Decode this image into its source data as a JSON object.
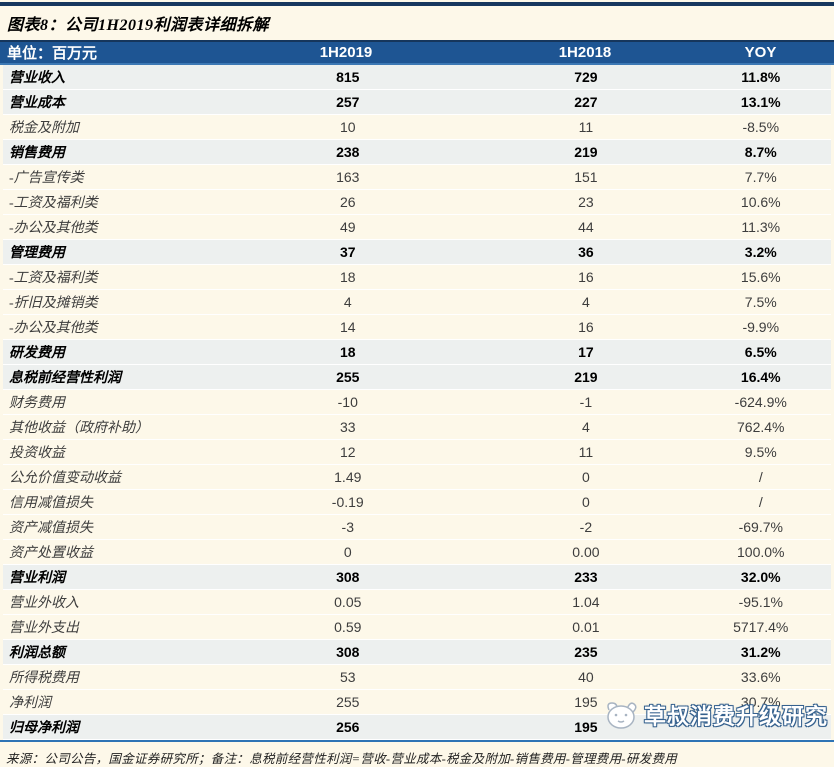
{
  "title": "图表8：公司1H2019利润表详细拆解",
  "table": {
    "unit_label": "单位：百万元",
    "columns": [
      "1H2019",
      "1H2018",
      "YOY"
    ],
    "rows": [
      {
        "label": "营业收入",
        "v2019": "815",
        "v2018": "729",
        "yoy": "11.8%",
        "bold": true
      },
      {
        "label": "营业成本",
        "v2019": "257",
        "v2018": "227",
        "yoy": "13.1%",
        "bold": true
      },
      {
        "label": "税金及附加",
        "v2019": "10",
        "v2018": "11",
        "yoy": "-8.5%",
        "bold": false
      },
      {
        "label": "销售费用",
        "v2019": "238",
        "v2018": "219",
        "yoy": "8.7%",
        "bold": true
      },
      {
        "label": "-广告宣传类",
        "v2019": "163",
        "v2018": "151",
        "yoy": "7.7%",
        "bold": false
      },
      {
        "label": "-工资及福利类",
        "v2019": "26",
        "v2018": "23",
        "yoy": "10.6%",
        "bold": false
      },
      {
        "label": "-办公及其他类",
        "v2019": "49",
        "v2018": "44",
        "yoy": "11.3%",
        "bold": false
      },
      {
        "label": "管理费用",
        "v2019": "37",
        "v2018": "36",
        "yoy": "3.2%",
        "bold": true
      },
      {
        "label": "-工资及福利类",
        "v2019": "18",
        "v2018": "16",
        "yoy": "15.6%",
        "bold": false
      },
      {
        "label": "-折旧及摊销类",
        "v2019": "4",
        "v2018": "4",
        "yoy": "7.5%",
        "bold": false
      },
      {
        "label": "-办公及其他类",
        "v2019": "14",
        "v2018": "16",
        "yoy": "-9.9%",
        "bold": false
      },
      {
        "label": "研发费用",
        "v2019": "18",
        "v2018": "17",
        "yoy": "6.5%",
        "bold": true
      },
      {
        "label": "息税前经营性利润",
        "v2019": "255",
        "v2018": "219",
        "yoy": "16.4%",
        "bold": true
      },
      {
        "label": "财务费用",
        "v2019": "-10",
        "v2018": "-1",
        "yoy": "-624.9%",
        "bold": false
      },
      {
        "label": "其他收益（政府补助）",
        "v2019": "33",
        "v2018": "4",
        "yoy": "762.4%",
        "bold": false
      },
      {
        "label": "投资收益",
        "v2019": "12",
        "v2018": "11",
        "yoy": "9.5%",
        "bold": false
      },
      {
        "label": "公允价值变动收益",
        "v2019": "1.49",
        "v2018": "0",
        "yoy": "/",
        "bold": false
      },
      {
        "label": "信用减值损失",
        "v2019": "-0.19",
        "v2018": "0",
        "yoy": "/",
        "bold": false
      },
      {
        "label": "资产减值损失",
        "v2019": "-3",
        "v2018": "-2",
        "yoy": "-69.7%",
        "bold": false
      },
      {
        "label": "资产处置收益",
        "v2019": "0",
        "v2018": "0.00",
        "yoy": "100.0%",
        "bold": false
      },
      {
        "label": "营业利润",
        "v2019": "308",
        "v2018": "233",
        "yoy": "32.0%",
        "bold": true
      },
      {
        "label": "营业外收入",
        "v2019": "0.05",
        "v2018": "1.04",
        "yoy": "-95.1%",
        "bold": false
      },
      {
        "label": "营业外支出",
        "v2019": "0.59",
        "v2018": "0.01",
        "yoy": "5717.4%",
        "bold": false
      },
      {
        "label": "利润总额",
        "v2019": "308",
        "v2018": "235",
        "yoy": "31.2%",
        "bold": true
      },
      {
        "label": "所得税费用",
        "v2019": "53",
        "v2018": "40",
        "yoy": "33.6%",
        "bold": false
      },
      {
        "label": "净利润",
        "v2019": "255",
        "v2018": "195",
        "yoy": "30.7%",
        "bold": false
      },
      {
        "label": "归母净利润",
        "v2019": "256",
        "v2018": "195",
        "yoy": "",
        "bold": true
      }
    ]
  },
  "footer": "来源：公司公告，国金证券研究所；备注：息税前经营性利润=营收-营业成本-税金及附加-销售费用-管理费用-研发费用",
  "watermark": {
    "text": "草叔消费升级研究",
    "icon": "mascot-logo-icon"
  },
  "colors": {
    "header_bg": "#1E5593",
    "header_top_border": "#16365C",
    "header_bottom_border": "#3C78B4",
    "bold_row_bg": "#EDF0EF",
    "normal_row_bg": "#FDF8E9",
    "page_bg": "#FDF8E9",
    "bottom_rule": "#2E74B5",
    "top_rule": "#17375E"
  }
}
